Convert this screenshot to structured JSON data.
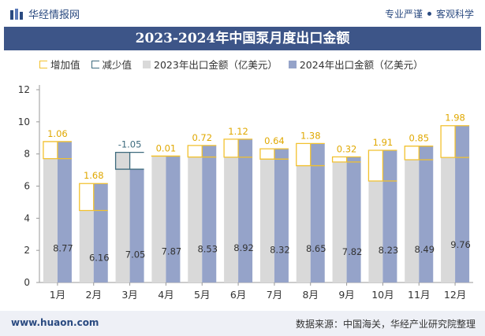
{
  "header": {
    "brand": "华经情报网",
    "slogan_left": "专业严谨",
    "slogan_right": "客观科学"
  },
  "legend": {
    "increase": "增加值",
    "decrease": "减少值",
    "series_2023": "2023年出口金额（亿美元）",
    "series_2024": "2024年出口金额（亿美元）"
  },
  "footer": {
    "url": "www.huaon.com",
    "source": "数据来源：中国海关，华经产业研究院整理"
  },
  "colors": {
    "bar_2023": "#d9d9d9",
    "bar_2024": "#95a3c9",
    "increase": "#f2c12e",
    "decrease": "#3e6b7e",
    "title_bg": "#3d5588"
  },
  "chart_data": {
    "type": "bar",
    "title": "2023-2024年中国泵月度出口金额",
    "categories": [
      "1月",
      "2月",
      "3月",
      "4月",
      "5月",
      "6月",
      "7月",
      "8月",
      "9月",
      "10月",
      "11月",
      "12月"
    ],
    "series": [
      {
        "name": "2023年出口金额（亿美元）",
        "values": [
          7.71,
          4.48,
          8.1,
          7.86,
          7.81,
          7.8,
          7.68,
          7.27,
          7.5,
          6.32,
          7.64,
          7.78
        ]
      },
      {
        "name": "2024年出口金额（亿美元）",
        "values": [
          8.77,
          6.16,
          7.05,
          7.87,
          8.53,
          8.92,
          8.32,
          8.65,
          7.82,
          8.23,
          8.49,
          9.76
        ]
      }
    ],
    "change": [
      1.06,
      1.68,
      -1.05,
      0.01,
      0.72,
      1.12,
      0.64,
      1.38,
      0.32,
      1.91,
      0.85,
      1.98
    ],
    "ylim": [
      0,
      12
    ],
    "yticks": [
      0,
      2,
      4,
      6,
      8,
      10,
      12
    ],
    "xlabel": "",
    "ylabel": ""
  }
}
